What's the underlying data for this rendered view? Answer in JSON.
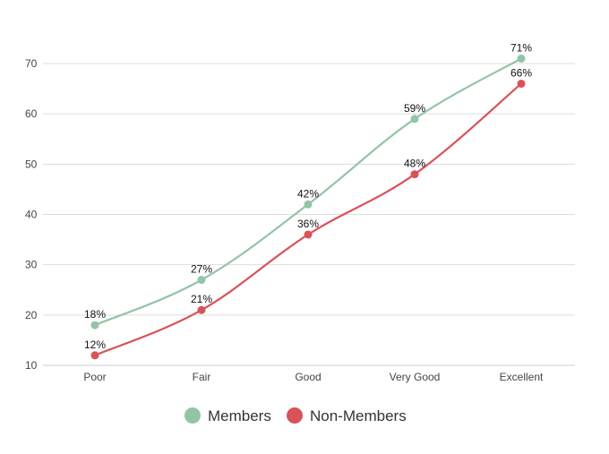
{
  "chart_data": {
    "type": "line",
    "categories": [
      "Poor",
      "Fair",
      "Good",
      "Very Good",
      "Excellent"
    ],
    "series": [
      {
        "name": "Members",
        "values": [
          18,
          27,
          42,
          59,
          71
        ],
        "labels": [
          "18%",
          "27%",
          "42%",
          "59%",
          "71%"
        ],
        "color": "#93c4a7"
      },
      {
        "name": "Non-Members",
        "values": [
          12,
          21,
          36,
          48,
          66
        ],
        "labels": [
          "12%",
          "21%",
          "36%",
          "48%",
          "66%"
        ],
        "color": "#d9525a"
      }
    ],
    "yticks": [
      "10",
      "20",
      "30",
      "40",
      "50",
      "60",
      "70"
    ],
    "ylim": [
      10,
      70
    ],
    "grid": true,
    "legend_position": "bottom",
    "title": "",
    "xlabel": "",
    "ylabel": ""
  }
}
